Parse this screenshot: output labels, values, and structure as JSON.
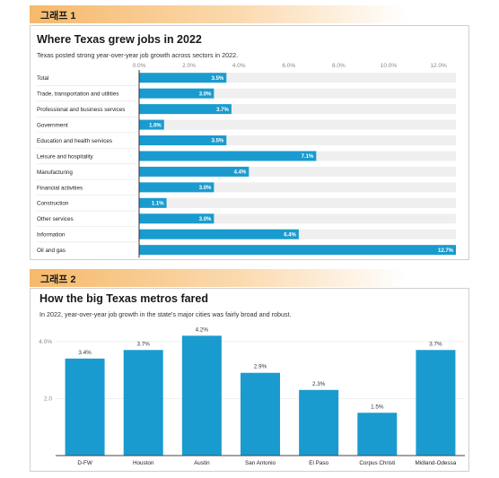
{
  "chart1_tag": "그래프 1",
  "chart2_tag": "그래프 2",
  "chart_data": [
    {
      "type": "bar",
      "orientation": "horizontal",
      "title": "Where Texas grew jobs in 2022",
      "subtitle": "Texas posted strong year-over-year job growth across sectors in 2022.",
      "categories": [
        "Total",
        "Trade, transportation and utilities",
        "Professional and business services",
        "Government",
        "Education and health services",
        "Leisure and hospitality",
        "Manufacturing",
        "Financial activities",
        "Construction",
        "Other services",
        "Information",
        "Oil and gas"
      ],
      "values": [
        3.5,
        3.0,
        3.7,
        1.0,
        3.5,
        7.1,
        4.4,
        3.0,
        1.1,
        3.0,
        6.4,
        12.7
      ],
      "value_labels": [
        "3.5%",
        "3.0%",
        "3.7%",
        "1.0%",
        "3.5%",
        "7.1%",
        "4.4%",
        "3.0%",
        "1.1%",
        "3.0%",
        "6.4%",
        "12.7%"
      ],
      "xlim": [
        0,
        12.7
      ],
      "xticks": [
        0,
        2,
        4,
        6,
        8,
        10,
        12
      ],
      "xtick_labels": [
        "0.0%",
        "2.0%",
        "4.0%",
        "6.0%",
        "8.0%",
        "10.0%",
        "12.0%"
      ],
      "xlabel": "",
      "ylabel": "",
      "bar_color": "#1a9bcf",
      "track_color": "#efefef"
    },
    {
      "type": "bar",
      "orientation": "vertical",
      "title": "How the big Texas metros fared",
      "subtitle": "In 2022, year-over-year job growth in the state's major cities was fairly broad and robust.",
      "categories": [
        "D-FW",
        "Houston",
        "Austin",
        "San Antonio",
        "El Paso",
        "Corpus Christi",
        "Midland-Odessa"
      ],
      "values": [
        3.4,
        3.7,
        4.2,
        2.9,
        2.3,
        1.5,
        3.7
      ],
      "value_labels": [
        "3.4%",
        "3.7%",
        "4.2%",
        "2.9%",
        "2.3%",
        "1.5%",
        "3.7%"
      ],
      "ylim": [
        0,
        4.4
      ],
      "yticks": [
        2,
        4
      ],
      "ytick_labels": [
        "2.0",
        "4.0%"
      ],
      "xlabel": "",
      "ylabel": "",
      "bar_color": "#1a9bcf"
    }
  ]
}
